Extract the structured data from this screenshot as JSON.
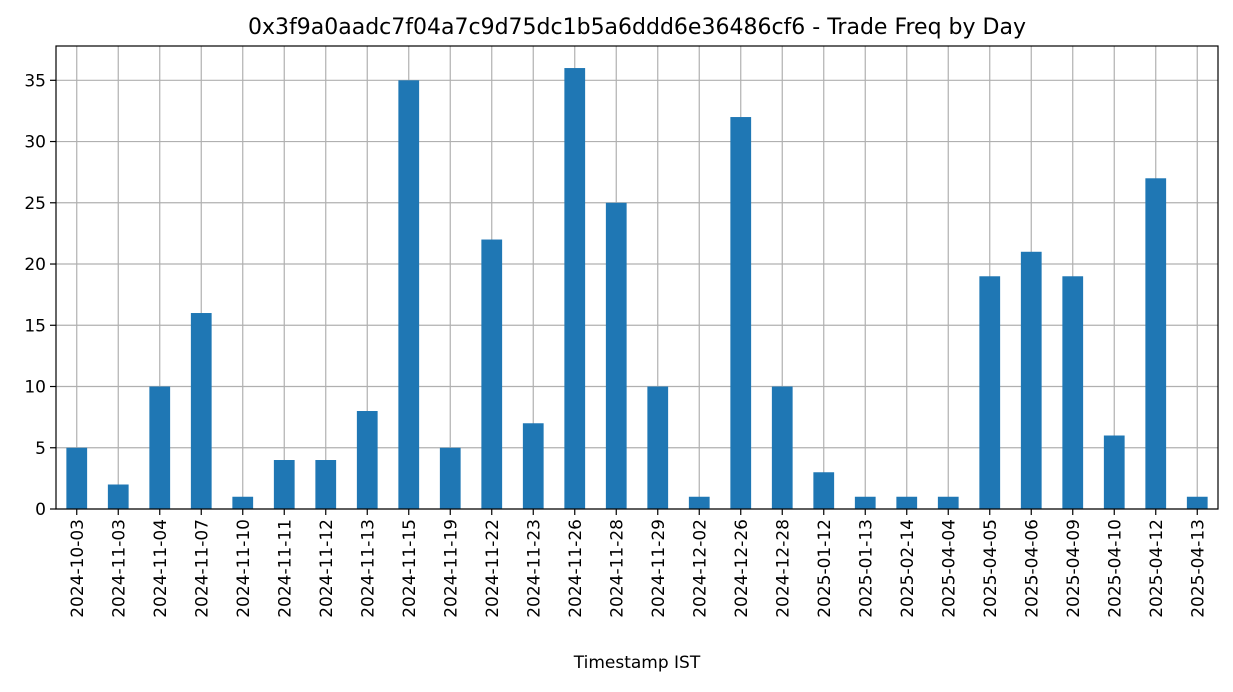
{
  "chart_data": {
    "type": "bar",
    "title": "0x3f9a0aadc7f04a7c9d75dc1b5a6ddd6e36486cf6 - Trade Freq by Day",
    "xlabel": "Timestamp IST",
    "ylabel": "",
    "categories": [
      "2024-10-03",
      "2024-11-03",
      "2024-11-04",
      "2024-11-07",
      "2024-11-10",
      "2024-11-11",
      "2024-11-12",
      "2024-11-13",
      "2024-11-15",
      "2024-11-19",
      "2024-11-22",
      "2024-11-23",
      "2024-11-26",
      "2024-11-28",
      "2024-11-29",
      "2024-12-02",
      "2024-12-26",
      "2024-12-28",
      "2025-01-12",
      "2025-01-13",
      "2025-02-14",
      "2025-04-04",
      "2025-04-05",
      "2025-04-06",
      "2025-04-09",
      "2025-04-10",
      "2025-04-12",
      "2025-04-13"
    ],
    "values": [
      5,
      2,
      10,
      16,
      1,
      4,
      4,
      8,
      35,
      5,
      22,
      7,
      36,
      25,
      10,
      1,
      32,
      10,
      3,
      1,
      1,
      1,
      19,
      21,
      19,
      6,
      27,
      1
    ],
    "ylim": [
      0,
      37.8
    ],
    "yticks": [
      0,
      5,
      10,
      15,
      20,
      25,
      30,
      35
    ],
    "grid": true,
    "bar_color": "#1f77b4",
    "grid_color": "#b0b0b0"
  }
}
